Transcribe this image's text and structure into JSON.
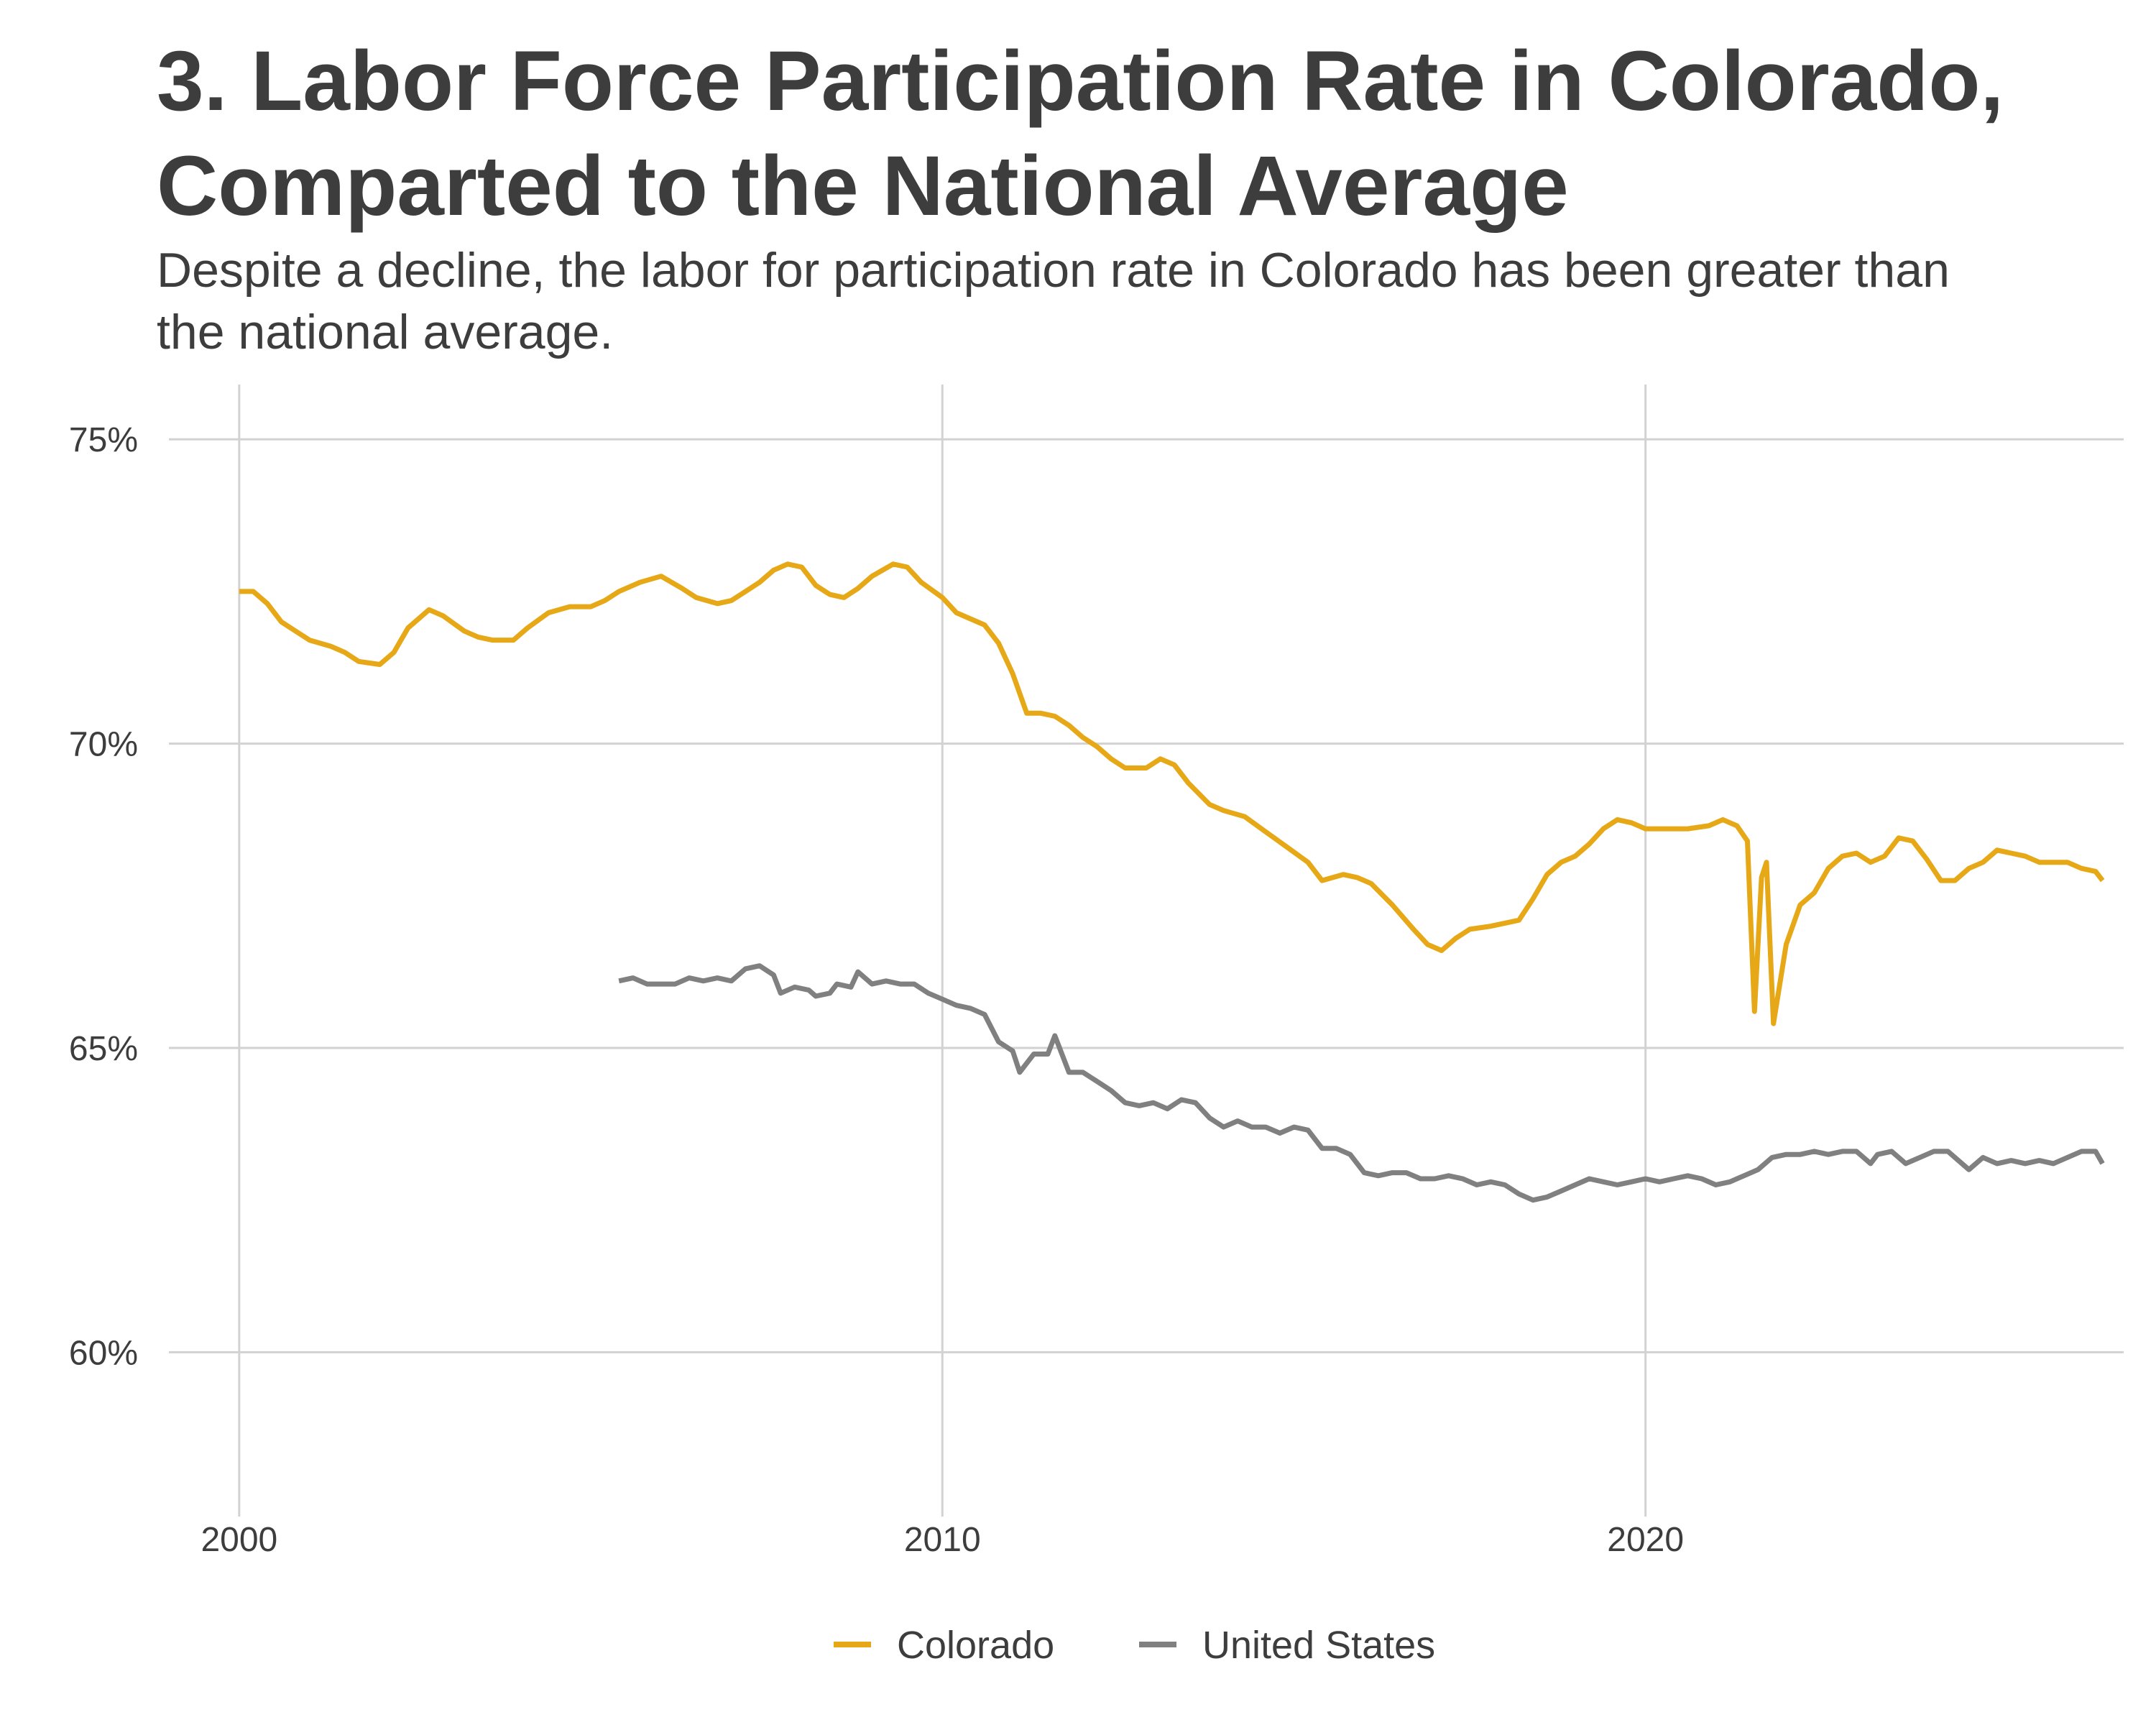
{
  "title": "3. Labor Force Participation Rate in Colorado, Comparted to the National Average",
  "subtitle": "Despite a decline, the labor for participation rate in Colorado has been greater than the national average.",
  "chart_data": {
    "type": "line",
    "title": "3. Labor Force Participation Rate in Colorado, Comparted to the National Average",
    "subtitle": "Despite a decline, the labor for participation rate in Colorado has been greater than the national average.",
    "xlabel": "",
    "ylabel": "",
    "xlim": [
      1999.0,
      2026.8
    ],
    "ylim": [
      57.3,
      75.9
    ],
    "x_ticks": [
      2000,
      2010,
      2020
    ],
    "x_tick_labels": [
      "2000",
      "2010",
      "2020"
    ],
    "y_ticks": [
      60,
      65,
      70,
      75
    ],
    "y_tick_labels": [
      "60%",
      "65%",
      "70%",
      "75%"
    ],
    "grid": true,
    "legend_position": "bottom",
    "series": [
      {
        "name": "Colorado",
        "color": "#E6A817",
        "points": [
          [
            2000.0,
            72.5
          ],
          [
            2000.2,
            72.5
          ],
          [
            2000.4,
            72.3
          ],
          [
            2000.6,
            72.0
          ],
          [
            2000.8,
            71.85
          ],
          [
            2001.0,
            71.7
          ],
          [
            2001.3,
            71.6
          ],
          [
            2001.5,
            71.5
          ],
          [
            2001.7,
            71.35
          ],
          [
            2002.0,
            71.3
          ],
          [
            2002.2,
            71.5
          ],
          [
            2002.4,
            71.9
          ],
          [
            2002.7,
            72.2
          ],
          [
            2002.9,
            72.1
          ],
          [
            2003.2,
            71.85
          ],
          [
            2003.4,
            71.75
          ],
          [
            2003.6,
            71.7
          ],
          [
            2003.9,
            71.7
          ],
          [
            2004.1,
            71.9
          ],
          [
            2004.4,
            72.15
          ],
          [
            2004.7,
            72.25
          ],
          [
            2005.0,
            72.25
          ],
          [
            2005.2,
            72.35
          ],
          [
            2005.4,
            72.5
          ],
          [
            2005.7,
            72.65
          ],
          [
            2006.0,
            72.75
          ],
          [
            2006.3,
            72.55
          ],
          [
            2006.5,
            72.4
          ],
          [
            2006.8,
            72.3
          ],
          [
            2007.0,
            72.35
          ],
          [
            2007.2,
            72.5
          ],
          [
            2007.4,
            72.65
          ],
          [
            2007.6,
            72.85
          ],
          [
            2007.8,
            72.95
          ],
          [
            2008.0,
            72.9
          ],
          [
            2008.2,
            72.6
          ],
          [
            2008.4,
            72.45
          ],
          [
            2008.6,
            72.4
          ],
          [
            2008.8,
            72.55
          ],
          [
            2009.0,
            72.75
          ],
          [
            2009.3,
            72.95
          ],
          [
            2009.5,
            72.9
          ],
          [
            2009.7,
            72.65
          ],
          [
            2010.0,
            72.4
          ],
          [
            2010.2,
            72.15
          ],
          [
            2010.4,
            72.05
          ],
          [
            2010.6,
            71.95
          ],
          [
            2010.8,
            71.65
          ],
          [
            2011.0,
            71.15
          ],
          [
            2011.2,
            70.5
          ],
          [
            2011.4,
            70.5
          ],
          [
            2011.6,
            70.45
          ],
          [
            2011.8,
            70.3
          ],
          [
            2012.0,
            70.1
          ],
          [
            2012.2,
            69.95
          ],
          [
            2012.4,
            69.75
          ],
          [
            2012.6,
            69.6
          ],
          [
            2012.9,
            69.6
          ],
          [
            2013.1,
            69.75
          ],
          [
            2013.3,
            69.65
          ],
          [
            2013.5,
            69.35
          ],
          [
            2013.8,
            69.0
          ],
          [
            2014.0,
            68.9
          ],
          [
            2014.3,
            68.8
          ],
          [
            2014.6,
            68.55
          ],
          [
            2014.9,
            68.3
          ],
          [
            2015.2,
            68.05
          ],
          [
            2015.4,
            67.75
          ],
          [
            2015.7,
            67.85
          ],
          [
            2015.9,
            67.8
          ],
          [
            2016.1,
            67.7
          ],
          [
            2016.4,
            67.35
          ],
          [
            2016.7,
            66.95
          ],
          [
            2016.9,
            66.7
          ],
          [
            2017.1,
            66.6
          ],
          [
            2017.3,
            66.8
          ],
          [
            2017.5,
            66.95
          ],
          [
            2017.8,
            67.0
          ],
          [
            2018.0,
            67.05
          ],
          [
            2018.2,
            67.1
          ],
          [
            2018.4,
            67.45
          ],
          [
            2018.6,
            67.85
          ],
          [
            2018.8,
            68.05
          ],
          [
            2019.0,
            68.15
          ],
          [
            2019.2,
            68.35
          ],
          [
            2019.4,
            68.6
          ],
          [
            2019.6,
            68.75
          ],
          [
            2019.8,
            68.7
          ],
          [
            2020.0,
            68.6
          ],
          [
            2020.3,
            68.6
          ],
          [
            2020.6,
            68.6
          ],
          [
            2020.9,
            68.65
          ],
          [
            2021.1,
            68.75
          ],
          [
            2021.3,
            68.65
          ],
          [
            2021.45,
            68.4
          ],
          [
            2021.55,
            65.6
          ],
          [
            2021.65,
            67.8
          ],
          [
            2021.72,
            68.05
          ],
          [
            2021.82,
            65.4
          ],
          [
            2022.0,
            66.7
          ],
          [
            2022.2,
            67.35
          ],
          [
            2022.4,
            67.55
          ],
          [
            2022.6,
            67.95
          ],
          [
            2022.8,
            68.15
          ],
          [
            2023.0,
            68.2
          ],
          [
            2023.2,
            68.05
          ],
          [
            2023.4,
            68.15
          ],
          [
            2023.6,
            68.45
          ],
          [
            2023.8,
            68.4
          ],
          [
            2024.0,
            68.1
          ],
          [
            2024.2,
            67.75
          ],
          [
            2024.4,
            67.75
          ],
          [
            2024.6,
            67.95
          ],
          [
            2024.8,
            68.05
          ],
          [
            2025.0,
            68.25
          ],
          [
            2025.2,
            68.2
          ],
          [
            2025.4,
            68.15
          ],
          [
            2025.6,
            68.05
          ],
          [
            2025.8,
            68.05
          ],
          [
            2026.0,
            68.05
          ],
          [
            2026.2,
            67.95
          ],
          [
            2026.4,
            67.9
          ],
          [
            2026.5,
            67.75
          ]
        ]
      },
      {
        "name": "United States",
        "color": "#808080",
        "points": [
          [
            2005.4,
            66.1
          ],
          [
            2005.6,
            66.15
          ],
          [
            2005.8,
            66.05
          ],
          [
            2006.0,
            66.05
          ],
          [
            2006.2,
            66.05
          ],
          [
            2006.4,
            66.15
          ],
          [
            2006.6,
            66.1
          ],
          [
            2006.8,
            66.15
          ],
          [
            2007.0,
            66.1
          ],
          [
            2007.2,
            66.3
          ],
          [
            2007.4,
            66.35
          ],
          [
            2007.6,
            66.2
          ],
          [
            2007.7,
            65.9
          ],
          [
            2007.9,
            66.0
          ],
          [
            2008.1,
            65.95
          ],
          [
            2008.2,
            65.85
          ],
          [
            2008.4,
            65.9
          ],
          [
            2008.5,
            66.05
          ],
          [
            2008.7,
            66.0
          ],
          [
            2008.8,
            66.25
          ],
          [
            2009.0,
            66.05
          ],
          [
            2009.2,
            66.1
          ],
          [
            2009.4,
            66.05
          ],
          [
            2009.6,
            66.05
          ],
          [
            2009.8,
            65.9
          ],
          [
            2010.0,
            65.8
          ],
          [
            2010.2,
            65.7
          ],
          [
            2010.4,
            65.65
          ],
          [
            2010.6,
            65.55
          ],
          [
            2010.8,
            65.1
          ],
          [
            2011.0,
            64.95
          ],
          [
            2011.1,
            64.6
          ],
          [
            2011.3,
            64.9
          ],
          [
            2011.5,
            64.9
          ],
          [
            2011.6,
            65.2
          ],
          [
            2011.8,
            64.6
          ],
          [
            2012.0,
            64.6
          ],
          [
            2012.2,
            64.45
          ],
          [
            2012.4,
            64.3
          ],
          [
            2012.6,
            64.1
          ],
          [
            2012.8,
            64.05
          ],
          [
            2013.0,
            64.1
          ],
          [
            2013.2,
            64.0
          ],
          [
            2013.4,
            64.15
          ],
          [
            2013.6,
            64.1
          ],
          [
            2013.8,
            63.85
          ],
          [
            2014.0,
            63.7
          ],
          [
            2014.2,
            63.8
          ],
          [
            2014.4,
            63.7
          ],
          [
            2014.6,
            63.7
          ],
          [
            2014.8,
            63.6
          ],
          [
            2015.0,
            63.7
          ],
          [
            2015.2,
            63.65
          ],
          [
            2015.4,
            63.35
          ],
          [
            2015.6,
            63.35
          ],
          [
            2015.8,
            63.25
          ],
          [
            2016.0,
            62.95
          ],
          [
            2016.2,
            62.9
          ],
          [
            2016.4,
            62.95
          ],
          [
            2016.6,
            62.95
          ],
          [
            2016.8,
            62.85
          ],
          [
            2017.0,
            62.85
          ],
          [
            2017.2,
            62.9
          ],
          [
            2017.4,
            62.85
          ],
          [
            2017.6,
            62.75
          ],
          [
            2017.8,
            62.8
          ],
          [
            2018.0,
            62.75
          ],
          [
            2018.2,
            62.6
          ],
          [
            2018.4,
            62.5
          ],
          [
            2018.6,
            62.55
          ],
          [
            2018.8,
            62.65
          ],
          [
            2019.0,
            62.75
          ],
          [
            2019.2,
            62.85
          ],
          [
            2019.4,
            62.8
          ],
          [
            2019.6,
            62.75
          ],
          [
            2019.8,
            62.8
          ],
          [
            2020.0,
            62.85
          ],
          [
            2020.2,
            62.8
          ],
          [
            2020.4,
            62.85
          ],
          [
            2020.6,
            62.9
          ],
          [
            2020.8,
            62.85
          ],
          [
            2021.0,
            62.75
          ],
          [
            2021.2,
            62.8
          ],
          [
            2021.4,
            62.9
          ],
          [
            2021.6,
            63.0
          ],
          [
            2021.8,
            63.2
          ],
          [
            2022.0,
            63.25
          ],
          [
            2022.2,
            63.25
          ],
          [
            2022.4,
            63.3
          ],
          [
            2022.6,
            63.25
          ],
          [
            2022.8,
            63.3
          ],
          [
            2023.0,
            63.3
          ],
          [
            2023.2,
            63.1
          ],
          [
            2023.3,
            63.25
          ],
          [
            2023.5,
            63.3
          ],
          [
            2023.7,
            63.1
          ],
          [
            2023.9,
            63.2
          ],
          [
            2024.1,
            63.3
          ],
          [
            2024.3,
            63.3
          ],
          [
            2024.6,
            63.0
          ],
          [
            2024.8,
            63.2
          ],
          [
            2025.0,
            63.1
          ],
          [
            2025.2,
            63.15
          ],
          [
            2025.4,
            63.1
          ],
          [
            2025.6,
            63.15
          ],
          [
            2025.8,
            63.1
          ],
          [
            2026.0,
            63.2
          ],
          [
            2026.2,
            63.3
          ],
          [
            2026.4,
            63.3
          ],
          [
            2026.5,
            63.1
          ]
        ]
      }
    ]
  }
}
